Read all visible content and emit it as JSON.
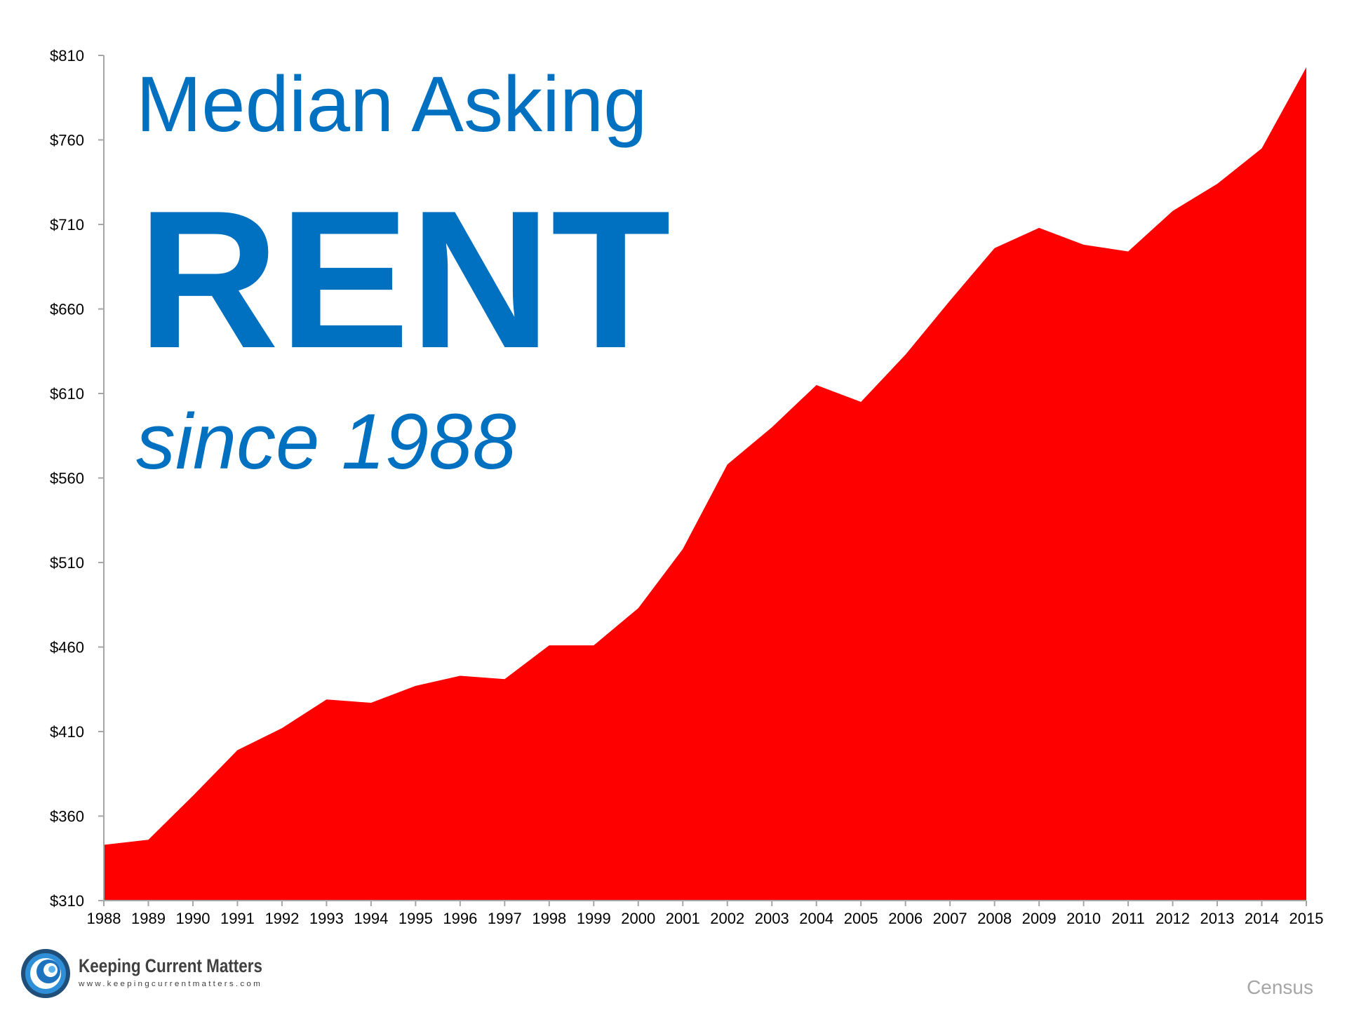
{
  "title": {
    "line1": "Median Asking",
    "line2": "RENT",
    "line3": "since 1988"
  },
  "source": "Census",
  "logo": {
    "name": "Keeping Current Matters",
    "url": "www.keepingcurrentmatters.com",
    "icon": "swirl-logo-icon"
  },
  "colors": {
    "area": "#ff0000",
    "title": "#0070c0",
    "source": "#a6a6a6"
  },
  "chart_data": {
    "type": "area",
    "x": [
      1988,
      1989,
      1990,
      1991,
      1992,
      1993,
      1994,
      1995,
      1996,
      1997,
      1998,
      1999,
      2000,
      2001,
      2002,
      2003,
      2004,
      2005,
      2006,
      2007,
      2008,
      2009,
      2010,
      2011,
      2012,
      2013,
      2014,
      2015
    ],
    "values": [
      343,
      346,
      372,
      399,
      412,
      429,
      427,
      437,
      443,
      441,
      461,
      461,
      483,
      518,
      568,
      590,
      615,
      605,
      633,
      665,
      696,
      708,
      698,
      694,
      718,
      734,
      755,
      803
    ],
    "ylim": [
      310,
      810
    ],
    "yticks": [
      310,
      360,
      410,
      460,
      510,
      560,
      610,
      660,
      710,
      760,
      810
    ],
    "ytick_labels": [
      "$310",
      "$360",
      "$410",
      "$460",
      "$510",
      "$560",
      "$610",
      "$660",
      "$710",
      "$760",
      "$810"
    ],
    "xtick_labels": [
      "1988",
      "1989",
      "1990",
      "1991",
      "1992",
      "1993",
      "1994",
      "1995",
      "1996",
      "1997",
      "1998",
      "1999",
      "2000",
      "2001",
      "2002",
      "2003",
      "2004",
      "2005",
      "2006",
      "2007",
      "2008",
      "2009",
      "2010",
      "2011",
      "2012",
      "2013",
      "2014",
      "2015"
    ],
    "xlabel": "",
    "ylabel": "",
    "grid": false,
    "legend": "none"
  }
}
